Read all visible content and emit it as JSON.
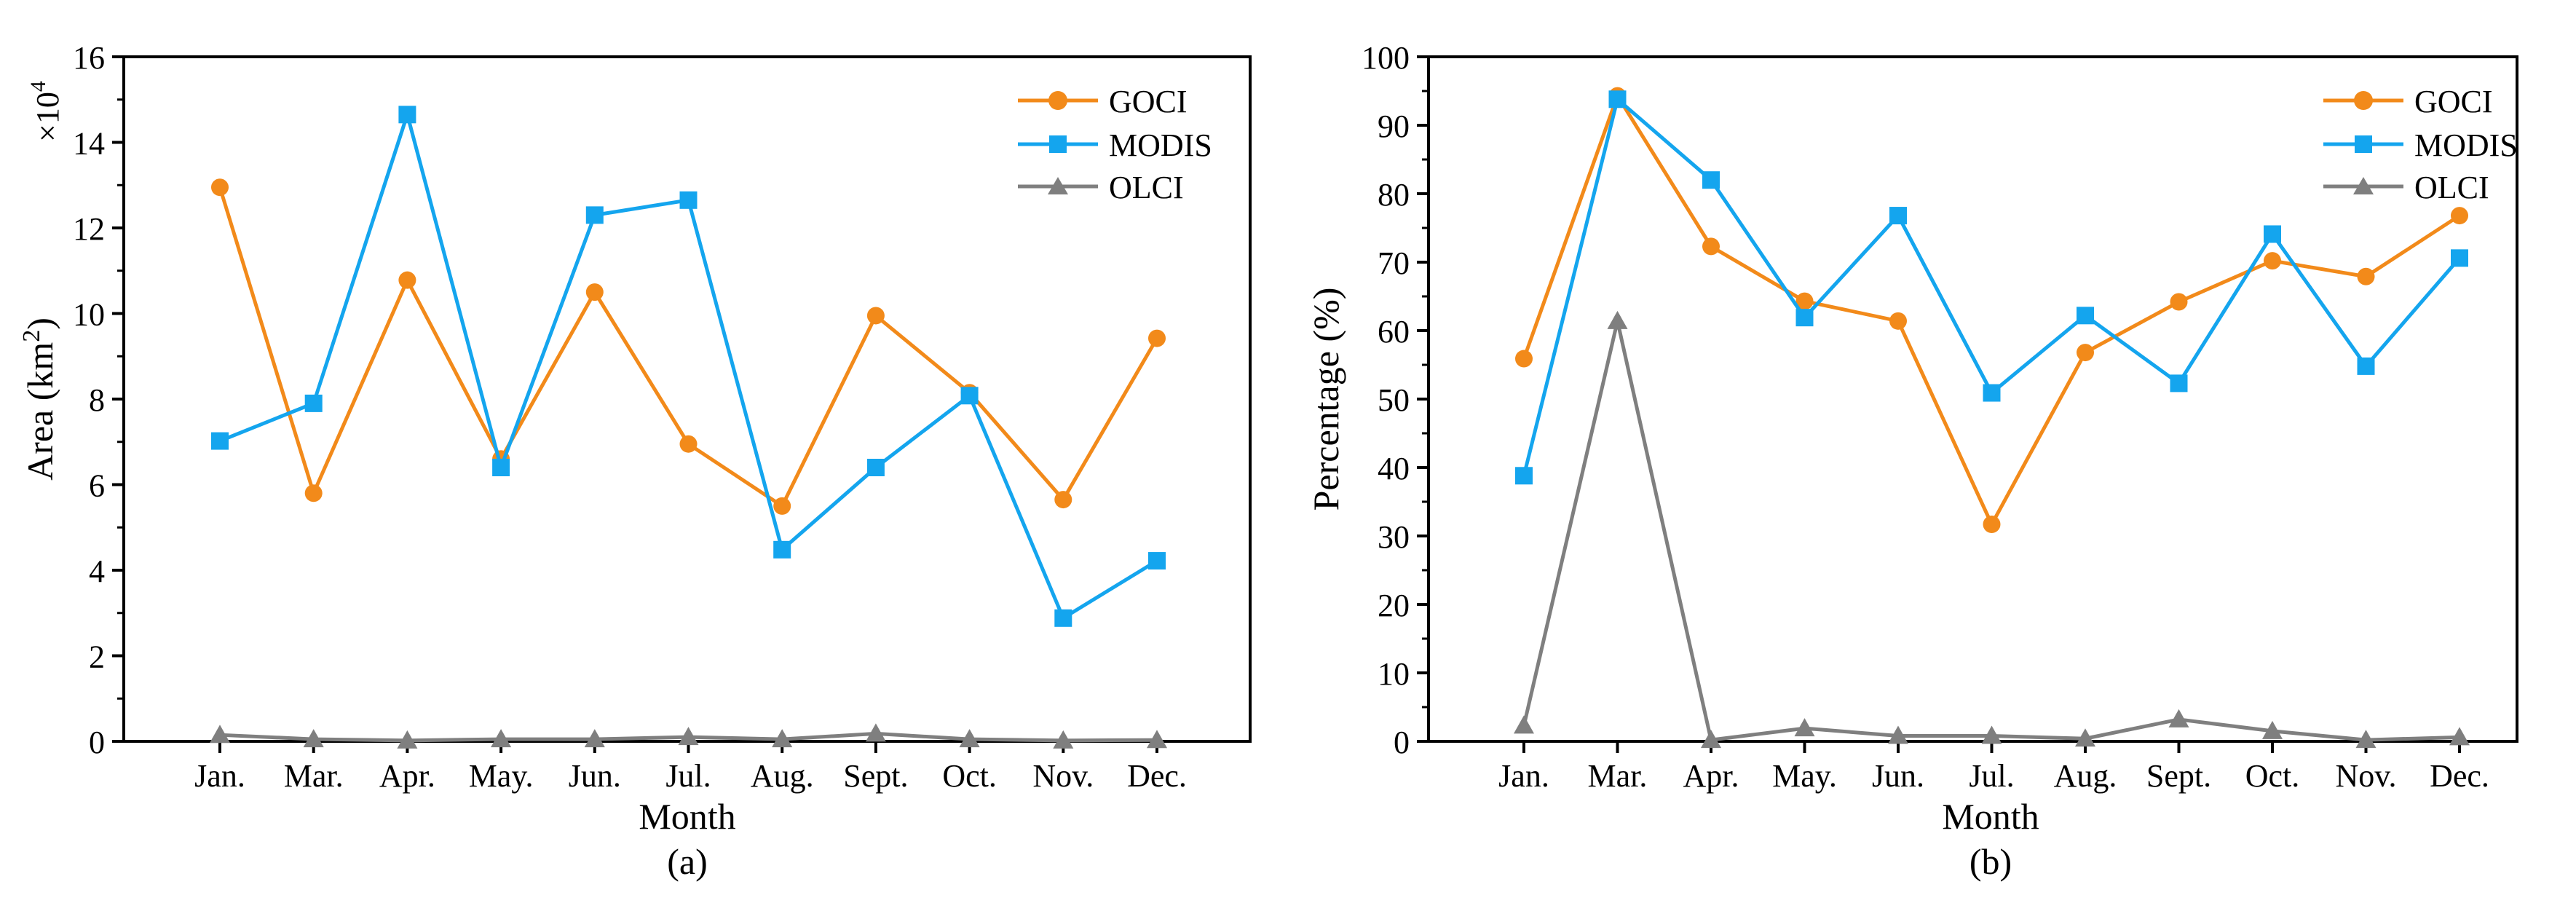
{
  "colors": {
    "goci": "#F28A1A",
    "modis": "#14A5EE",
    "olci": "#7F7F7F"
  },
  "chart_data": [
    {
      "panel_label": "(a)",
      "type": "line",
      "xlabel": "Month",
      "ylabel": "Area (km²)",
      "ylabel_main": "Area (km",
      "ylabel_sup": "2",
      "ylabel_tail": ")",
      "multiplier_base": "×10",
      "multiplier_exp": "4",
      "ylim": [
        0,
        16
      ],
      "yticks": [
        0,
        2,
        4,
        6,
        8,
        10,
        12,
        14,
        16
      ],
      "ytick_labels": [
        "0",
        "2",
        "4",
        "6",
        "8",
        "10",
        "12",
        "14",
        "16"
      ],
      "categories": [
        "Jan.",
        "Mar.",
        "Apr.",
        "May.",
        "Jun.",
        "Jul.",
        "Aug.",
        "Sept.",
        "Oct.",
        "Nov.",
        "Dec."
      ],
      "legend_position": "top-right",
      "series": [
        {
          "name": "GOCI",
          "marker": "circle",
          "values": [
            12.95,
            5.8,
            10.78,
            6.6,
            10.5,
            6.95,
            5.5,
            9.95,
            8.15,
            5.65,
            9.42
          ]
        },
        {
          "name": "MODIS",
          "marker": "square",
          "values": [
            7.02,
            7.9,
            14.65,
            6.4,
            12.3,
            12.65,
            4.48,
            6.4,
            8.08,
            2.88,
            4.22
          ]
        },
        {
          "name": "OLCI",
          "marker": "triangle",
          "values": [
            0.15,
            0.05,
            0.02,
            0.05,
            0.05,
            0.1,
            0.05,
            0.18,
            0.05,
            0.02,
            0.03
          ]
        }
      ]
    },
    {
      "panel_label": "(b)",
      "type": "line",
      "xlabel": "Month",
      "ylabel": "Percentage (%)",
      "ylim": [
        0,
        100
      ],
      "yticks": [
        0,
        10,
        20,
        30,
        40,
        50,
        60,
        70,
        80,
        90,
        100
      ],
      "ytick_labels": [
        "0",
        "10",
        "20",
        "30",
        "40",
        "50",
        "60",
        "70",
        "80",
        "90",
        "100"
      ],
      "categories": [
        "Jan.",
        "Mar.",
        "Apr.",
        "May.",
        "Jun.",
        "Jul.",
        "Aug.",
        "Sept.",
        "Oct.",
        "Nov.",
        "Dec."
      ],
      "legend_position": "top-right",
      "series": [
        {
          "name": "GOCI",
          "marker": "circle",
          "values": [
            55.9,
            94.3,
            72.3,
            64.3,
            61.4,
            31.7,
            56.8,
            64.2,
            70.2,
            67.9,
            76.8
          ]
        },
        {
          "name": "MODIS",
          "marker": "square",
          "values": [
            38.8,
            93.8,
            82.0,
            61.9,
            76.8,
            50.9,
            62.2,
            52.3,
            74.1,
            54.8,
            70.6
          ]
        },
        {
          "name": "OLCI",
          "marker": "triangle",
          "values": [
            2.3,
            61.4,
            0.2,
            1.9,
            0.8,
            0.8,
            0.4,
            3.2,
            1.5,
            0.2,
            0.6
          ]
        }
      ]
    }
  ]
}
